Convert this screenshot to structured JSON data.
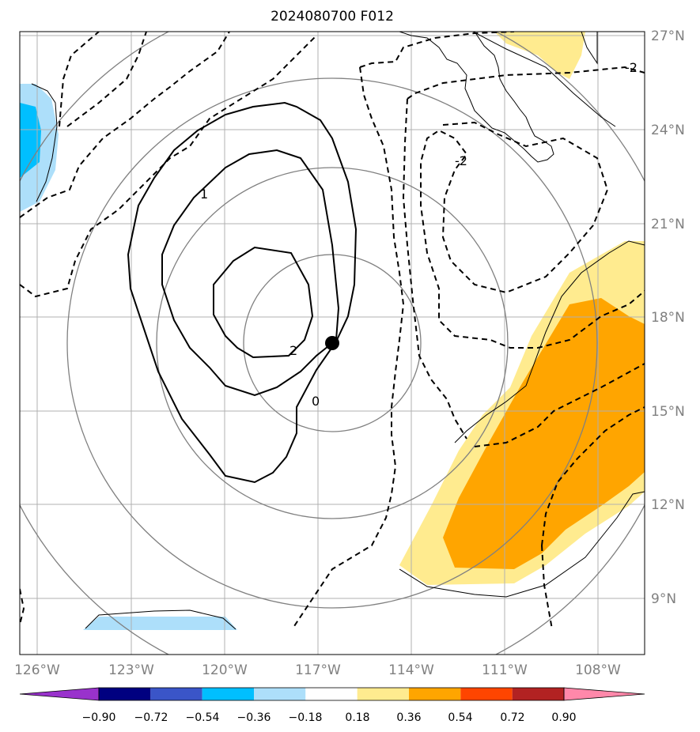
{
  "title": "2024080700 F012",
  "map": {
    "lon_labels": [
      "126°W",
      "123°W",
      "120°W",
      "117°W",
      "114°W",
      "111°W",
      "108°W"
    ],
    "lat_labels": [
      "27°N",
      "24°N",
      "21°N",
      "18°N",
      "15°N",
      "12°N",
      "9°N"
    ],
    "contour_labels": [
      "-2",
      "-2",
      "1",
      "2",
      "0"
    ],
    "storm_marker": {
      "lon": -116.6,
      "lat": 17.1
    }
  },
  "colorbar": {
    "ticks": [
      "−0.90",
      "−0.72",
      "−0.54",
      "−0.36",
      "−0.18",
      "0.18",
      "0.36",
      "0.54",
      "0.72",
      "0.90"
    ],
    "colors": [
      "#9932CC",
      "#000080",
      "#3A55C8",
      "#00BFFF",
      "#ADDFFA",
      "#FFFFFF",
      "#FFEB8F",
      "#FFA500",
      "#FF4500",
      "#B22222",
      "#FF88AA"
    ]
  }
}
